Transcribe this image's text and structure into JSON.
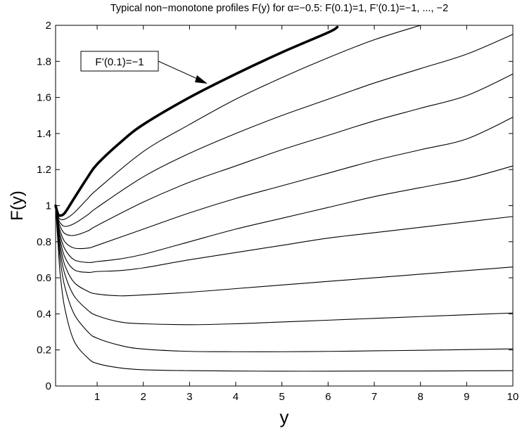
{
  "chart_data": {
    "type": "line",
    "title": "Typical non−monotone profiles F(y) for α=−0.5: F(0.1)=1, F’(0.1)=−1, ..., −2",
    "xlabel": "y",
    "ylabel": "F(y)",
    "xlim": [
      0.1,
      10
    ],
    "ylim": [
      0,
      2
    ],
    "xticks": [
      1,
      2,
      3,
      4,
      5,
      6,
      7,
      8,
      9,
      10
    ],
    "yticks": [
      0,
      0.2,
      0.4,
      0.6,
      0.8,
      1,
      1.2,
      1.4,
      1.6,
      1.8,
      2
    ],
    "ytick_labels": [
      "0",
      "0.2",
      "0.4",
      "0.6",
      "0.8",
      "1",
      "1.2",
      "1.4",
      "1.6",
      "1.8",
      "2"
    ],
    "grid": false,
    "line_color": "#000000",
    "annotation": {
      "text": "F’(0.1)=−1"
    },
    "series": [
      {
        "highlight": true,
        "x": [
          0.1,
          0.15,
          0.2,
          0.3,
          0.5,
          0.8,
          1,
          1.5,
          2,
          3,
          4,
          5,
          6,
          6.2
        ],
        "y": [
          1,
          0.955,
          0.945,
          0.96,
          1.04,
          1.16,
          1.23,
          1.35,
          1.45,
          1.6,
          1.73,
          1.85,
          1.96,
          1.99
        ]
      },
      {
        "x": [
          0.1,
          0.15,
          0.2,
          0.3,
          0.5,
          0.8,
          1,
          2,
          3,
          4,
          5,
          6,
          7,
          8
        ],
        "y": [
          1,
          0.945,
          0.925,
          0.925,
          0.96,
          1.04,
          1.09,
          1.3,
          1.45,
          1.59,
          1.71,
          1.82,
          1.92,
          2.0
        ]
      },
      {
        "x": [
          0.1,
          0.15,
          0.2,
          0.3,
          0.5,
          0.8,
          1,
          2,
          3,
          4,
          5,
          6,
          7,
          8,
          9,
          10
        ],
        "y": [
          1,
          0.935,
          0.905,
          0.885,
          0.9,
          0.95,
          0.99,
          1.16,
          1.29,
          1.4,
          1.5,
          1.59,
          1.68,
          1.76,
          1.84,
          1.95
        ]
      },
      {
        "x": [
          0.1,
          0.15,
          0.2,
          0.3,
          0.5,
          0.8,
          1,
          2,
          3,
          4,
          5,
          6,
          7,
          8,
          9,
          10
        ],
        "y": [
          1,
          0.925,
          0.885,
          0.845,
          0.835,
          0.86,
          0.89,
          1.02,
          1.13,
          1.22,
          1.31,
          1.39,
          1.47,
          1.54,
          1.61,
          1.73
        ]
      },
      {
        "x": [
          0.1,
          0.15,
          0.2,
          0.3,
          0.5,
          0.8,
          1,
          2,
          3,
          4,
          5,
          6,
          7,
          8,
          9,
          10
        ],
        "y": [
          1,
          0.915,
          0.86,
          0.8,
          0.765,
          0.765,
          0.78,
          0.87,
          0.96,
          1.04,
          1.11,
          1.18,
          1.25,
          1.31,
          1.37,
          1.49
        ]
      },
      {
        "x": [
          0.1,
          0.15,
          0.2,
          0.3,
          0.5,
          0.8,
          1,
          1.5,
          2,
          3,
          4,
          5,
          6,
          7,
          8,
          9,
          10
        ],
        "y": [
          1,
          0.905,
          0.835,
          0.76,
          0.7,
          0.685,
          0.69,
          0.705,
          0.73,
          0.8,
          0.87,
          0.93,
          0.99,
          1.05,
          1.1,
          1.15,
          1.22
        ]
      },
      {
        "x": [
          0.1,
          0.15,
          0.2,
          0.3,
          0.5,
          0.8,
          1,
          1.5,
          2,
          3,
          4,
          5,
          6,
          7,
          8,
          9,
          10
        ],
        "y": [
          1,
          0.89,
          0.81,
          0.715,
          0.645,
          0.63,
          0.635,
          0.64,
          0.655,
          0.7,
          0.74,
          0.78,
          0.82,
          0.85,
          0.88,
          0.91,
          0.94
        ]
      },
      {
        "x": [
          0.1,
          0.15,
          0.2,
          0.3,
          0.5,
          0.8,
          1,
          1.5,
          2,
          3,
          4,
          5,
          6,
          7,
          8,
          9,
          10
        ],
        "y": [
          1,
          0.875,
          0.78,
          0.67,
          0.575,
          0.525,
          0.51,
          0.5,
          0.505,
          0.52,
          0.54,
          0.56,
          0.58,
          0.6,
          0.62,
          0.64,
          0.66
        ]
      },
      {
        "x": [
          0.1,
          0.15,
          0.2,
          0.3,
          0.5,
          0.8,
          1,
          1.5,
          2,
          3,
          4,
          5,
          6,
          7,
          8,
          9,
          10
        ],
        "y": [
          1,
          0.86,
          0.745,
          0.62,
          0.5,
          0.42,
          0.39,
          0.355,
          0.345,
          0.34,
          0.345,
          0.355,
          0.365,
          0.375,
          0.385,
          0.395,
          0.405
        ]
      },
      {
        "x": [
          0.1,
          0.15,
          0.2,
          0.3,
          0.5,
          0.8,
          1,
          1.5,
          2,
          3,
          4,
          5,
          6,
          7,
          8,
          9,
          10
        ],
        "y": [
          1,
          0.84,
          0.7,
          0.55,
          0.4,
          0.3,
          0.265,
          0.225,
          0.205,
          0.192,
          0.19,
          0.19,
          0.192,
          0.195,
          0.198,
          0.202,
          0.206
        ]
      },
      {
        "x": [
          0.1,
          0.15,
          0.2,
          0.3,
          0.5,
          0.8,
          1,
          1.5,
          2,
          3,
          4,
          5,
          6,
          7,
          8,
          9,
          10
        ],
        "y": [
          1,
          0.8,
          0.62,
          0.43,
          0.25,
          0.155,
          0.125,
          0.1,
          0.09,
          0.085,
          0.083,
          0.082,
          0.082,
          0.083,
          0.083,
          0.084,
          0.085
        ]
      }
    ]
  }
}
